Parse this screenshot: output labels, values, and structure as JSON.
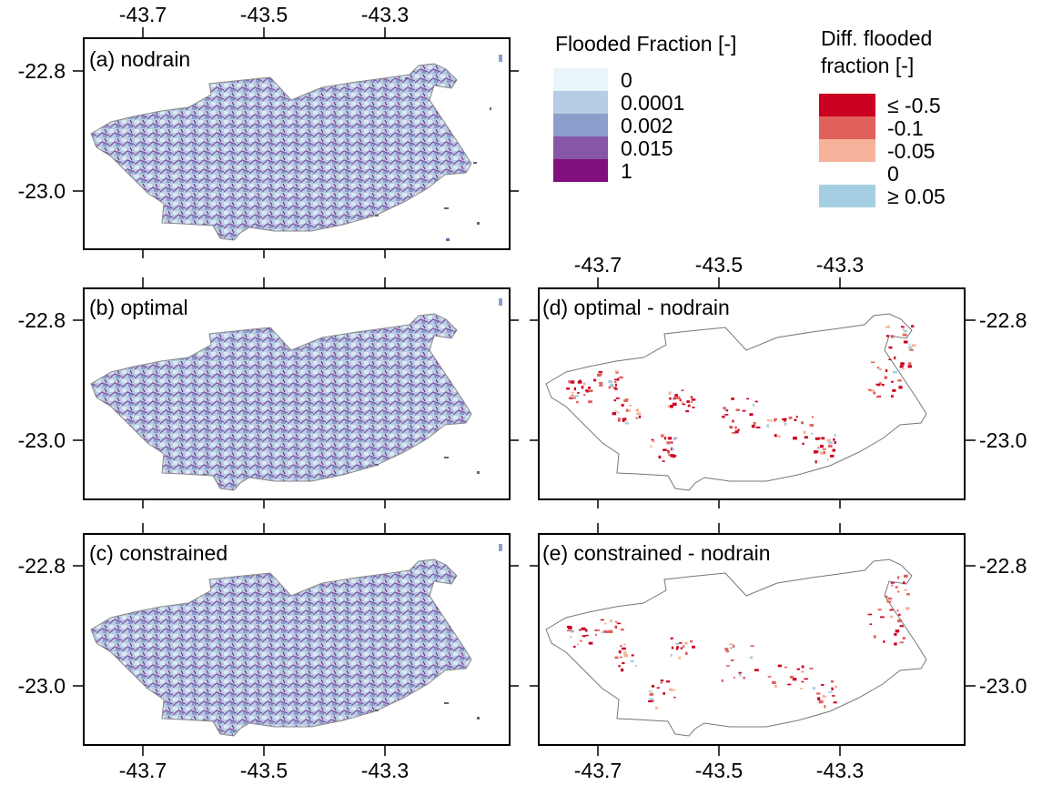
{
  "figure": {
    "legend_flooded": {
      "title": "Flooded Fraction [-]",
      "items": [
        {
          "label": "0",
          "color": "#eaf5f9"
        },
        {
          "label": "0.0001",
          "color": "#b6cde3"
        },
        {
          "label": "0.002",
          "color": "#8c9ecb"
        },
        {
          "label": "0.015",
          "color": "#8856a7"
        },
        {
          "label": "1",
          "color": "#810f7c"
        }
      ]
    },
    "legend_diff": {
      "title_line1": "Diff.  flooded",
      "title_line2": "fraction [-]",
      "items": [
        {
          "label": "≤ -0.5",
          "color": "#ca0020"
        },
        {
          "label": "-0.1",
          "color": "#e0605a"
        },
        {
          "label": "-0.05",
          "color": "#f4b39a"
        },
        {
          "label": "0",
          "color": "#ffffff"
        },
        {
          "label": "≥ 0.05",
          "color": "#a6cee3"
        }
      ]
    },
    "axes": {
      "lon_ticks": [
        "-43.7",
        "-43.5",
        "-43.3"
      ],
      "lat_ticks": [
        "-22.8",
        "-23.0"
      ]
    },
    "panels": [
      {
        "label": "(a) nodrain",
        "type": "flood"
      },
      {
        "label": "(b) optimal",
        "type": "flood"
      },
      {
        "label": "(c) constrained",
        "type": "flood"
      },
      {
        "label": "(d) optimal - nodrain",
        "type": "diff"
      },
      {
        "label": "(e) constrained - nodrain",
        "type": "diff"
      }
    ]
  }
}
